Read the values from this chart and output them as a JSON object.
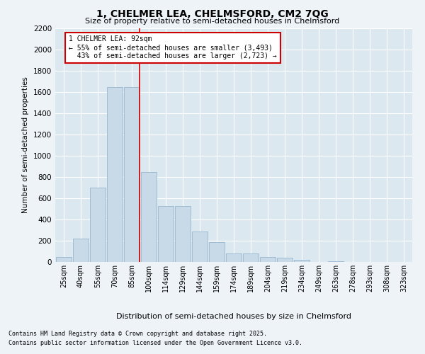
{
  "title": "1, CHELMER LEA, CHELMSFORD, CM2 7QG",
  "subtitle": "Size of property relative to semi-detached houses in Chelmsford",
  "xlabel": "Distribution of semi-detached houses by size in Chelmsford",
  "ylabel": "Number of semi-detached properties",
  "categories": [
    "25sqm",
    "40sqm",
    "55sqm",
    "70sqm",
    "85sqm",
    "100sqm",
    "114sqm",
    "129sqm",
    "144sqm",
    "159sqm",
    "174sqm",
    "189sqm",
    "204sqm",
    "219sqm",
    "234sqm",
    "249sqm",
    "263sqm",
    "278sqm",
    "293sqm",
    "308sqm",
    "323sqm"
  ],
  "values": [
    50,
    220,
    700,
    1650,
    1650,
    850,
    530,
    530,
    290,
    185,
    80,
    80,
    50,
    40,
    20,
    0,
    10,
    0,
    0,
    0,
    0
  ],
  "bar_color": "#c8d9e8",
  "bar_edge_color": "#a0bcd4",
  "pct_smaller": 55,
  "pct_larger": 43,
  "n_smaller": 3493,
  "n_larger": 2723,
  "property_sqm": 92,
  "property_label": "1 CHELMER LEA: 92sqm",
  "ylim": [
    0,
    2200
  ],
  "yticks": [
    0,
    200,
    400,
    600,
    800,
    1000,
    1200,
    1400,
    1600,
    1800,
    2000,
    2200
  ],
  "annotation_box_facecolor": "#ffffff",
  "annotation_box_edgecolor": "#cc0000",
  "plot_bg": "#dce8f0",
  "fig_bg": "#eef3f8",
  "footer_line1": "Contains HM Land Registry data © Crown copyright and database right 2025.",
  "footer_line2": "Contains public sector information licensed under the Open Government Licence v3.0."
}
